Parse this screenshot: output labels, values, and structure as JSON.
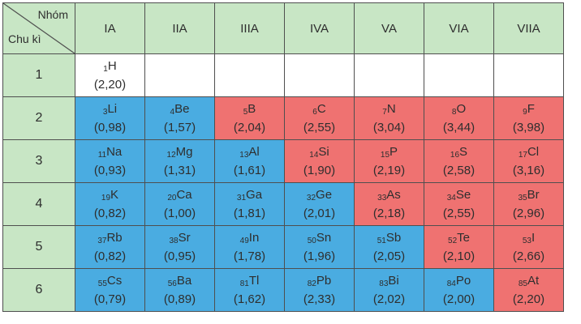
{
  "header": {
    "corner_top": "Nhóm",
    "corner_bottom": "Chu kì",
    "groups": [
      "IA",
      "IIA",
      "IIIA",
      "IVA",
      "VA",
      "VIA",
      "VIIA"
    ]
  },
  "colors": {
    "metal": "#4aace1",
    "nonmetal": "#ef7271",
    "header": "#c8e6c5",
    "empty": "#ffffff"
  },
  "rows": [
    {
      "period": "1",
      "cells": [
        {
          "z": "1",
          "symbol": "H",
          "en": "(2,20)",
          "type": "empty"
        },
        null,
        null,
        null,
        null,
        null,
        null
      ]
    },
    {
      "period": "2",
      "cells": [
        {
          "z": "3",
          "symbol": "Li",
          "en": "(0,98)",
          "type": "metal"
        },
        {
          "z": "4",
          "symbol": "Be",
          "en": "(1,57)",
          "type": "metal"
        },
        {
          "z": "5",
          "symbol": "B",
          "en": "(2,04)",
          "type": "nonmetal"
        },
        {
          "z": "6",
          "symbol": "C",
          "en": "(2,55)",
          "type": "nonmetal"
        },
        {
          "z": "7",
          "symbol": "N",
          "en": "(3,04)",
          "type": "nonmetal"
        },
        {
          "z": "8",
          "symbol": "O",
          "en": "(3,44)",
          "type": "nonmetal"
        },
        {
          "z": "9",
          "symbol": "F",
          "en": "(3,98)",
          "type": "nonmetal"
        }
      ]
    },
    {
      "period": "3",
      "cells": [
        {
          "z": "11",
          "symbol": "Na",
          "en": "(0,93)",
          "type": "metal"
        },
        {
          "z": "12",
          "symbol": "Mg",
          "en": "(1,31)",
          "type": "metal"
        },
        {
          "z": "13",
          "symbol": "Al",
          "en": "(1,61)",
          "type": "metal"
        },
        {
          "z": "14",
          "symbol": "Si",
          "en": "(1,90)",
          "type": "nonmetal"
        },
        {
          "z": "15",
          "symbol": "P",
          "en": "(2,19)",
          "type": "nonmetal"
        },
        {
          "z": "16",
          "symbol": "S",
          "en": "(2,58)",
          "type": "nonmetal"
        },
        {
          "z": "17",
          "symbol": "Cl",
          "en": "(3,16)",
          "type": "nonmetal"
        }
      ]
    },
    {
      "period": "4",
      "cells": [
        {
          "z": "19",
          "symbol": "K",
          "en": "(0,82)",
          "type": "metal"
        },
        {
          "z": "20",
          "symbol": "Ca",
          "en": "(1,00)",
          "type": "metal"
        },
        {
          "z": "31",
          "symbol": "Ga",
          "en": "(1,81)",
          "type": "metal"
        },
        {
          "z": "32",
          "symbol": "Ge",
          "en": "(2,01)",
          "type": "metal"
        },
        {
          "z": "33",
          "symbol": "As",
          "en": "(2,18)",
          "type": "nonmetal"
        },
        {
          "z": "34",
          "symbol": "Se",
          "en": "(2,55)",
          "type": "nonmetal"
        },
        {
          "z": "35",
          "symbol": "Br",
          "en": "(2,96)",
          "type": "nonmetal"
        }
      ]
    },
    {
      "period": "5",
      "cells": [
        {
          "z": "37",
          "symbol": "Rb",
          "en": "(0,82)",
          "type": "metal"
        },
        {
          "z": "38",
          "symbol": "Sr",
          "en": "(0,95)",
          "type": "metal"
        },
        {
          "z": "49",
          "symbol": "In",
          "en": "(1,78)",
          "type": "metal"
        },
        {
          "z": "50",
          "symbol": "Sn",
          "en": "(1,96)",
          "type": "metal"
        },
        {
          "z": "51",
          "symbol": "Sb",
          "en": "(2,05)",
          "type": "metal"
        },
        {
          "z": "52",
          "symbol": "Te",
          "en": "(2,10)",
          "type": "nonmetal"
        },
        {
          "z": "53",
          "symbol": "I",
          "en": "(2,66)",
          "type": "nonmetal"
        }
      ]
    },
    {
      "period": "6",
      "cells": [
        {
          "z": "55",
          "symbol": "Cs",
          "en": "(0,79)",
          "type": "metal"
        },
        {
          "z": "56",
          "symbol": "Ba",
          "en": "(0,89)",
          "type": "metal"
        },
        {
          "z": "81",
          "symbol": "Tl",
          "en": "(1,62)",
          "type": "metal"
        },
        {
          "z": "82",
          "symbol": "Pb",
          "en": "(2,33)",
          "type": "metal"
        },
        {
          "z": "83",
          "symbol": "Bi",
          "en": "(2,02)",
          "type": "metal"
        },
        {
          "z": "84",
          "symbol": "Po",
          "en": "(2,00)",
          "type": "metal"
        },
        {
          "z": "85",
          "symbol": "At",
          "en": "(2,20)",
          "type": "nonmetal"
        }
      ]
    }
  ]
}
